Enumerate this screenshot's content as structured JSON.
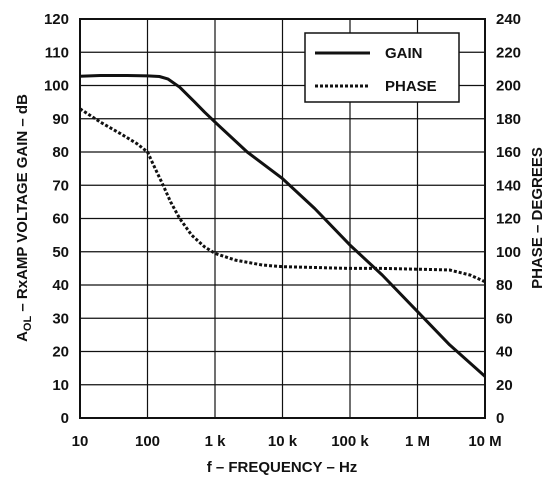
{
  "chart_data": {
    "type": "line",
    "xscale": "log",
    "xlabel": "f – FREQUENCY – Hz",
    "ylabel_main": "A",
    "ylabel_sub": "OL",
    "ylabel_rest": " – RxAMP VOLTAGE GAIN – dB",
    "y2label": "PHASE – DEGREES",
    "xlim": [
      10,
      10000000
    ],
    "ylim": [
      0,
      120
    ],
    "y2lim": [
      0,
      240
    ],
    "grid": true,
    "legend_position": "top-right",
    "x_ticks": [
      {
        "value": 10,
        "label": "10"
      },
      {
        "value": 100,
        "label": "100"
      },
      {
        "value": 1000,
        "label": "1 k"
      },
      {
        "value": 10000,
        "label": "10 k"
      },
      {
        "value": 100000,
        "label": "100 k"
      },
      {
        "value": 1000000,
        "label": "1 M"
      },
      {
        "value": 10000000,
        "label": "10 M"
      }
    ],
    "y_ticks": [
      0,
      10,
      20,
      30,
      40,
      50,
      60,
      70,
      80,
      90,
      100,
      110,
      120
    ],
    "y2_ticks": [
      0,
      20,
      40,
      60,
      80,
      100,
      120,
      140,
      160,
      180,
      200,
      220,
      240
    ],
    "series": [
      {
        "name": "GAIN",
        "axis": "left",
        "style": "solid",
        "color": "#111111",
        "points": [
          [
            10,
            102.8
          ],
          [
            20,
            103
          ],
          [
            50,
            103
          ],
          [
            100,
            102.9
          ],
          [
            150,
            102.7
          ],
          [
            200,
            102
          ],
          [
            300,
            99.5
          ],
          [
            500,
            95
          ],
          [
            700,
            92
          ],
          [
            1000,
            89
          ],
          [
            3000,
            80
          ],
          [
            10000,
            72
          ],
          [
            30000,
            63
          ],
          [
            100000,
            52
          ],
          [
            300000,
            43
          ],
          [
            1000000,
            32
          ],
          [
            3000000,
            22
          ],
          [
            10000000,
            12.5
          ]
        ]
      },
      {
        "name": "PHASE",
        "axis": "right",
        "style": "dotted",
        "color": "#111111",
        "points": [
          [
            10,
            186
          ],
          [
            20,
            178
          ],
          [
            40,
            171
          ],
          [
            70,
            165
          ],
          [
            100,
            160
          ],
          [
            130,
            150
          ],
          [
            170,
            140
          ],
          [
            220,
            130
          ],
          [
            300,
            120
          ],
          [
            450,
            110
          ],
          [
            700,
            103
          ],
          [
            1000,
            99
          ],
          [
            2000,
            95
          ],
          [
            5000,
            92
          ],
          [
            10000,
            91
          ],
          [
            30000,
            90.5
          ],
          [
            100000,
            90
          ],
          [
            300000,
            90
          ],
          [
            1000000,
            89.5
          ],
          [
            3000000,
            89
          ],
          [
            6000000,
            86
          ],
          [
            10000000,
            82
          ]
        ]
      }
    ]
  }
}
